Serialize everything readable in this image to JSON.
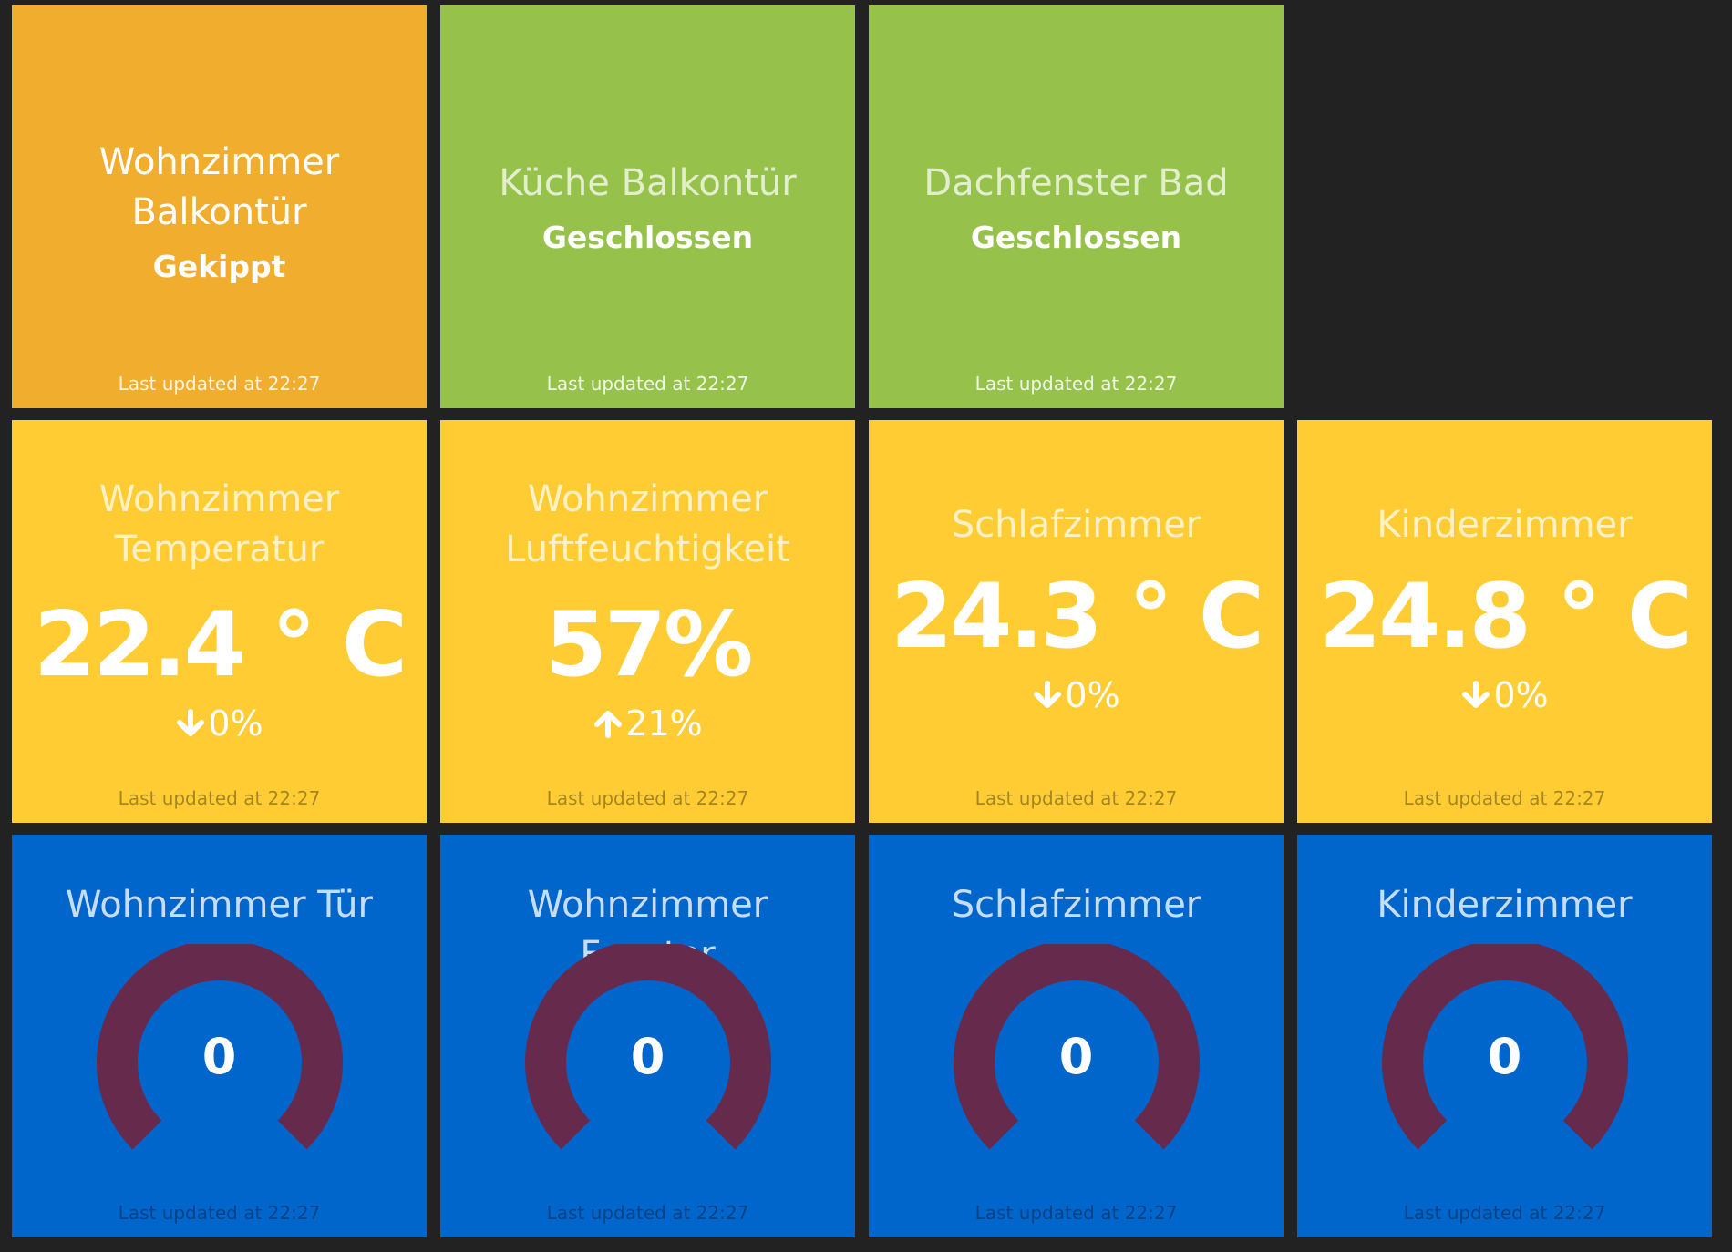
{
  "colors": {
    "background": "#222222",
    "warning": "#f0ad2e",
    "ok": "#96c24b",
    "sensor": "#ffcd33",
    "gauge_tile": "#0066cc",
    "gauge_arc": "#662a4d"
  },
  "row1": [
    {
      "title": "Wohnzimmer Balkontür",
      "status": "Gekippt",
      "updated": "Last updated at 22:27"
    },
    {
      "title": "Küche Balkontür",
      "status": "Geschlossen",
      "updated": "Last updated at 22:27"
    },
    {
      "title": "Dachfenster Bad",
      "status": "Geschlossen",
      "updated": "Last updated at 22:27"
    }
  ],
  "row2": [
    {
      "title": "Wohnzimmer Temperatur",
      "value": "22.4 ° C",
      "change": "0%",
      "direction": "down",
      "change_icon": "arrow-down-icon",
      "updated": "Last updated at 22:27"
    },
    {
      "title": "Wohnzimmer Luftfeuchtigkeit",
      "value": "57%",
      "change": "21%",
      "direction": "up",
      "change_icon": "arrow-up-icon",
      "updated": "Last updated at 22:27"
    },
    {
      "title": "Schlafzimmer",
      "value": "24.3 ° C",
      "change": "0%",
      "direction": "down",
      "change_icon": "arrow-down-icon",
      "updated": "Last updated at 22:27"
    },
    {
      "title": "Kinderzimmer",
      "value": "24.8 ° C",
      "change": "0%",
      "direction": "down",
      "change_icon": "arrow-down-icon",
      "updated": "Last updated at 22:27"
    }
  ],
  "row3": [
    {
      "title": "Wohnzimmer Tür",
      "value": "0",
      "updated": "Last updated at 22:27"
    },
    {
      "title": "Wohnzimmer Fenster",
      "value": "0",
      "updated": "Last updated at 22:27"
    },
    {
      "title": "Schlafzimmer",
      "value": "0",
      "updated": "Last updated at 22:27"
    },
    {
      "title": "Kinderzimmer",
      "value": "0",
      "updated": "Last updated at 22:27"
    }
  ]
}
